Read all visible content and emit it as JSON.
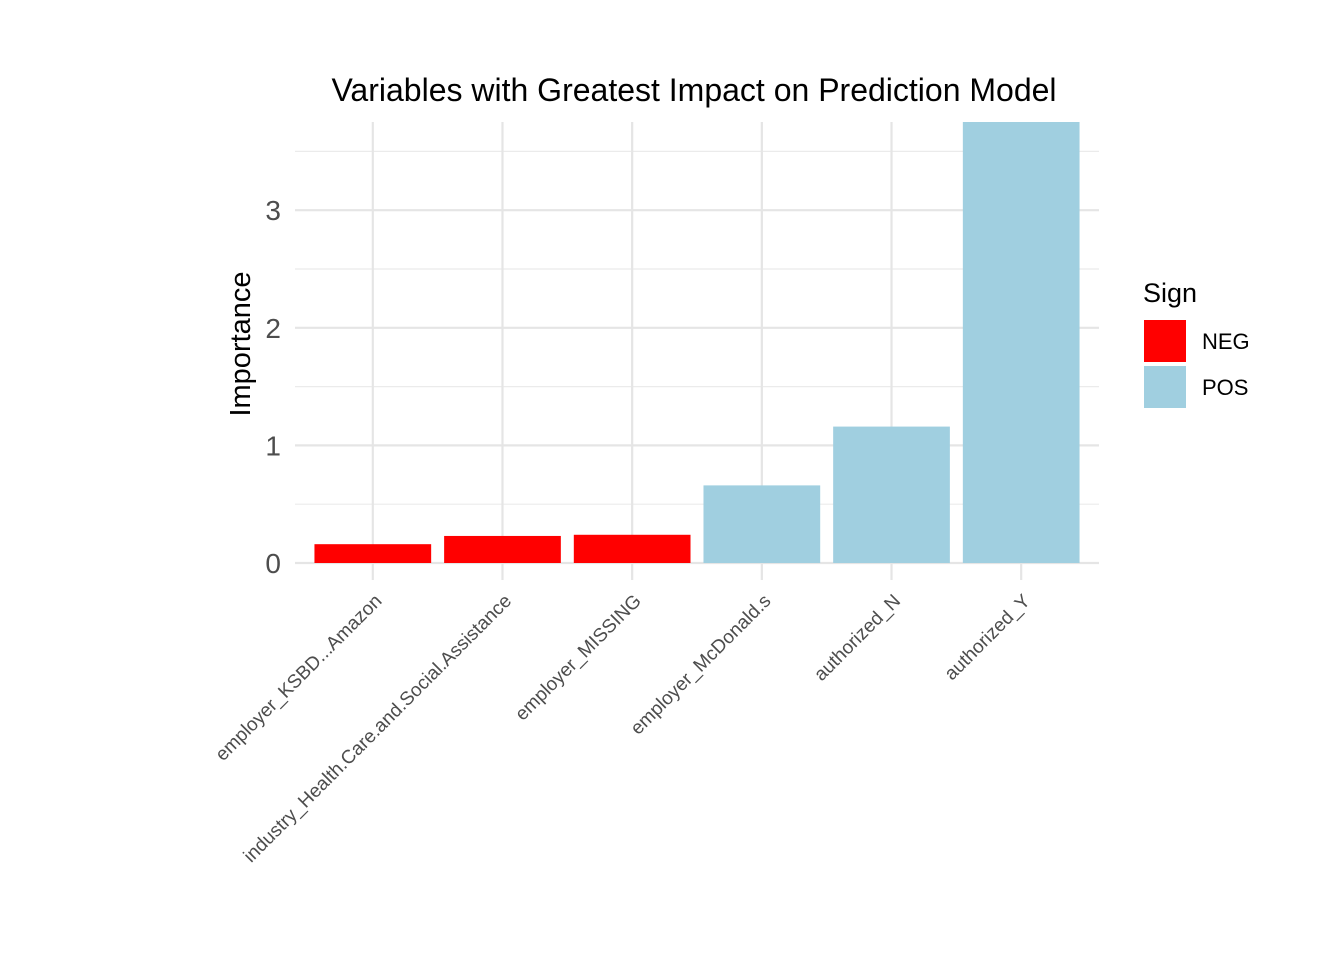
{
  "chart_data": {
    "type": "bar",
    "title": "Variables with Greatest Impact on Prediction Model",
    "xlabel": "",
    "ylabel": "Importance",
    "categories": [
      "employer_KSBD...Amazon",
      "industry_Health.Care.and.Social.Assistance",
      "employer_MISSING",
      "employer_McDonald.s",
      "authorized_N",
      "authorized_Y"
    ],
    "values": [
      0.16,
      0.23,
      0.24,
      0.66,
      1.16,
      3.75
    ],
    "sign": [
      "NEG",
      "NEG",
      "NEG",
      "POS",
      "POS",
      "POS"
    ],
    "ylim": [
      0,
      3.75
    ],
    "yticks": [
      0,
      1,
      2,
      3
    ],
    "grid": true,
    "legend": {
      "title": "Sign",
      "placement": "right",
      "entries": [
        {
          "label": "NEG",
          "color": "#ff0000"
        },
        {
          "label": "POS",
          "color": "#a0cfe0"
        }
      ]
    }
  }
}
